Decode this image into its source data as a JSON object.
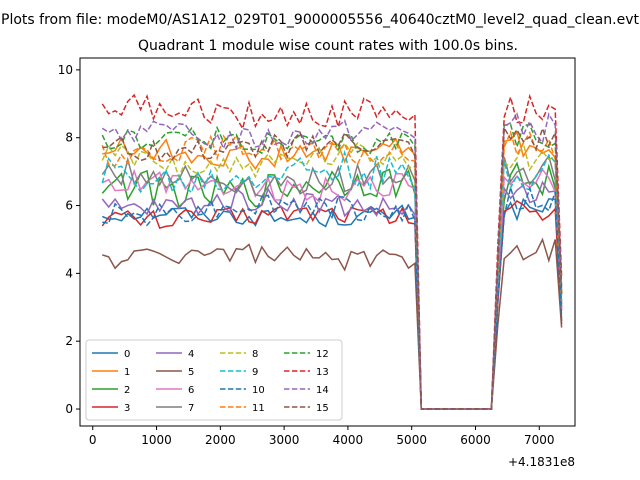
{
  "figure": {
    "suptitle": "Plots from file: modeM0/AS1A12_029T01_9000005556_40640cztM0_level2_quad_clean.evt",
    "offset_label": "+4.1831e8"
  },
  "chart_data": {
    "type": "line",
    "title": "Quadrant 1 module wise count rates with 100.0s bins.",
    "xlabel": "",
    "ylabel": "",
    "xlim": [
      -200,
      7560
    ],
    "ylim": [
      -0.5,
      10.35
    ],
    "xticks": [
      0,
      1000,
      2000,
      3000,
      4000,
      5000,
      6000,
      7000
    ],
    "yticks": [
      0,
      2,
      4,
      6,
      8,
      10
    ],
    "grid": false,
    "legend": {
      "placement": "lower-left",
      "columns": 4
    },
    "x_range_active": [
      150,
      5050
    ],
    "gap": [
      5150,
      6250
    ],
    "x_range_active2": [
      6350,
      7350
    ],
    "series": [
      {
        "name": "0",
        "color": "#1f77b4",
        "dash": "solid",
        "mean": 5.7,
        "amp": 0.25,
        "end": 2.6
      },
      {
        "name": "1",
        "color": "#ff7f0e",
        "dash": "solid",
        "mean": 7.55,
        "amp": 0.35,
        "end": 3.4
      },
      {
        "name": "2",
        "color": "#2ca02c",
        "dash": "solid",
        "mean": 6.55,
        "amp": 0.5,
        "end": 3.0
      },
      {
        "name": "3",
        "color": "#d62728",
        "dash": "solid",
        "mean": 5.7,
        "amp": 0.3,
        "end": 2.5
      },
      {
        "name": "4",
        "color": "#9467bd",
        "dash": "solid",
        "mean": 6.05,
        "amp": 0.35,
        "end": 2.9
      },
      {
        "name": "5",
        "color": "#8c564b",
        "dash": "solid",
        "mean": 4.5,
        "amp": 0.3,
        "end": 2.4
      },
      {
        "name": "6",
        "color": "#e377c2",
        "dash": "solid",
        "mean": 6.6,
        "amp": 0.35,
        "end": 3.0
      },
      {
        "name": "7",
        "color": "#7f7f7f",
        "dash": "solid",
        "mean": 6.8,
        "amp": 0.4,
        "end": 3.1
      },
      {
        "name": "8",
        "color": "#bcbd22",
        "dash": "dashed",
        "mean": 7.3,
        "amp": 0.4,
        "end": 3.3
      },
      {
        "name": "9",
        "color": "#17becf",
        "dash": "dashed",
        "mean": 6.9,
        "amp": 0.5,
        "end": 3.2
      },
      {
        "name": "10",
        "color": "#1f77b4",
        "dash": "dashed",
        "mean": 5.9,
        "amp": 0.35,
        "end": 2.7
      },
      {
        "name": "11",
        "color": "#ff7f0e",
        "dash": "dashed",
        "mean": 7.6,
        "amp": 0.35,
        "end": 3.4
      },
      {
        "name": "12",
        "color": "#2ca02c",
        "dash": "dashed",
        "mean": 7.9,
        "amp": 0.35,
        "end": 3.5
      },
      {
        "name": "13",
        "color": "#d62728",
        "dash": "dashed",
        "mean": 8.75,
        "amp": 0.4,
        "end": 3.9
      },
      {
        "name": "14",
        "color": "#9467bd",
        "dash": "dashed",
        "mean": 8.1,
        "amp": 0.35,
        "end": 3.6
      },
      {
        "name": "15",
        "color": "#8c564b",
        "dash": "dashed",
        "mean": 7.7,
        "amp": 0.35,
        "end": 3.4
      }
    ]
  }
}
